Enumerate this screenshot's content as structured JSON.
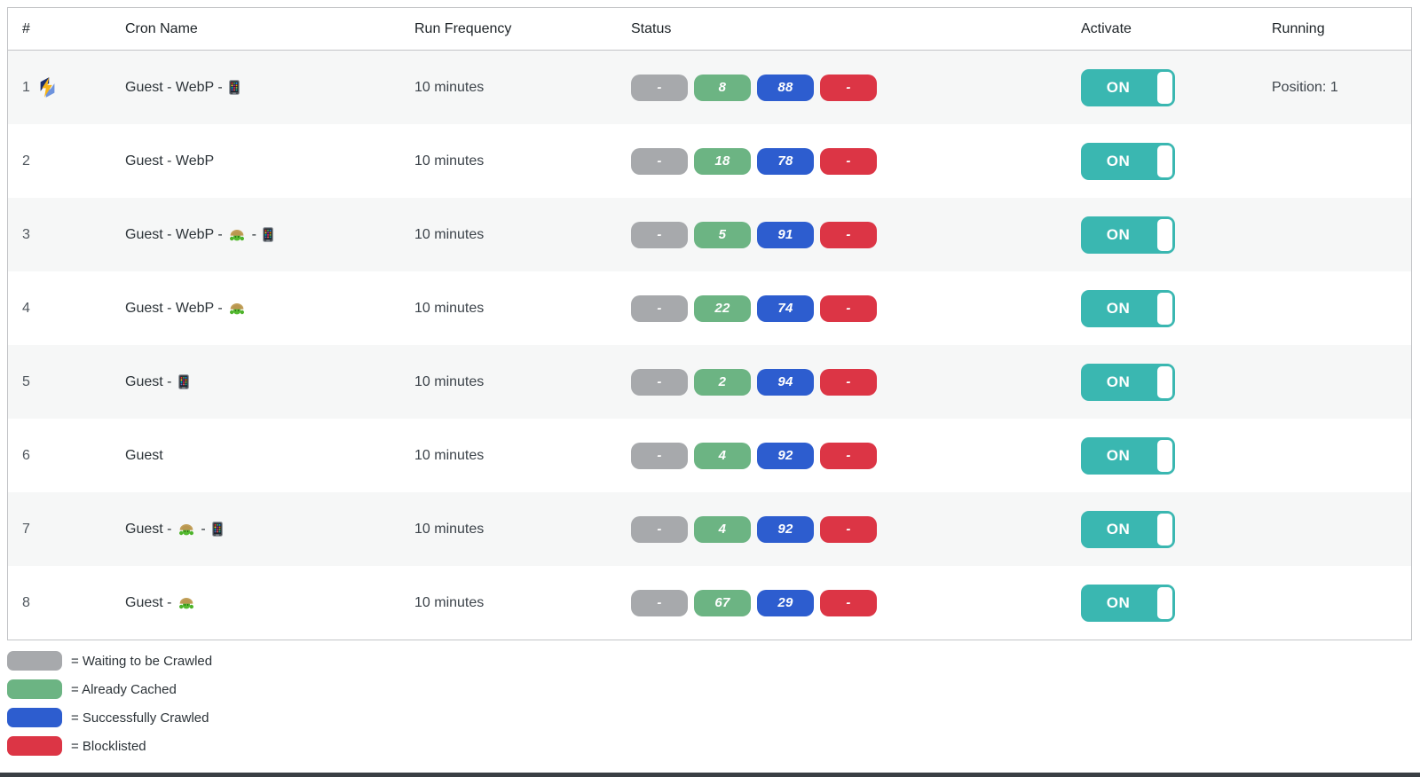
{
  "colors": {
    "waiting_gray": "#a7a9ac",
    "cached_green": "#6cb483",
    "crawled_blue": "#2d5dcf",
    "blocklisted_red": "#dc3545",
    "toggle_teal": "#3ab7b1",
    "row_stripe": "#f6f7f7",
    "table_border": "#c3c4c7"
  },
  "table": {
    "columns": [
      "#",
      "Cron Name",
      "Run Frequency",
      "Status",
      "Activate",
      "Running"
    ],
    "rows": [
      {
        "num": "1",
        "litespeed_icon": true,
        "name_parts": [
          {
            "type": "text",
            "value": "Guest - WebP - "
          },
          {
            "type": "phone-emoji",
            "value": "📱"
          }
        ],
        "frequency": "10 minutes",
        "status": {
          "waiting": "-",
          "cached": "8",
          "crawled": "88",
          "blocklisted": "-"
        },
        "activate": "ON",
        "running": "Position: 1"
      },
      {
        "num": "2",
        "litespeed_icon": false,
        "name_parts": [
          {
            "type": "text",
            "value": "Guest - WebP"
          }
        ],
        "frequency": "10 minutes",
        "status": {
          "waiting": "-",
          "cached": "18",
          "crawled": "78",
          "blocklisted": "-"
        },
        "activate": "ON",
        "running": ""
      },
      {
        "num": "3",
        "litespeed_icon": false,
        "name_parts": [
          {
            "type": "text",
            "value": "Guest - WebP - "
          },
          {
            "type": "turtle-emoji",
            "value": "🐢"
          },
          {
            "type": "text",
            "value": " - "
          },
          {
            "type": "phone-emoji",
            "value": "📱"
          }
        ],
        "frequency": "10 minutes",
        "status": {
          "waiting": "-",
          "cached": "5",
          "crawled": "91",
          "blocklisted": "-"
        },
        "activate": "ON",
        "running": ""
      },
      {
        "num": "4",
        "litespeed_icon": false,
        "name_parts": [
          {
            "type": "text",
            "value": "Guest - WebP - "
          },
          {
            "type": "turtle-emoji",
            "value": "🐢"
          }
        ],
        "frequency": "10 minutes",
        "status": {
          "waiting": "-",
          "cached": "22",
          "crawled": "74",
          "blocklisted": "-"
        },
        "activate": "ON",
        "running": ""
      },
      {
        "num": "5",
        "litespeed_icon": false,
        "name_parts": [
          {
            "type": "text",
            "value": "Guest - "
          },
          {
            "type": "phone-emoji",
            "value": "📱"
          }
        ],
        "frequency": "10 minutes",
        "status": {
          "waiting": "-",
          "cached": "2",
          "crawled": "94",
          "blocklisted": "-"
        },
        "activate": "ON",
        "running": ""
      },
      {
        "num": "6",
        "litespeed_icon": false,
        "name_parts": [
          {
            "type": "text",
            "value": "Guest"
          }
        ],
        "frequency": "10 minutes",
        "status": {
          "waiting": "-",
          "cached": "4",
          "crawled": "92",
          "blocklisted": "-"
        },
        "activate": "ON",
        "running": ""
      },
      {
        "num": "7",
        "litespeed_icon": false,
        "name_parts": [
          {
            "type": "text",
            "value": "Guest - "
          },
          {
            "type": "turtle-emoji",
            "value": "🐢"
          },
          {
            "type": "text",
            "value": " - "
          },
          {
            "type": "phone-emoji",
            "value": "📱"
          }
        ],
        "frequency": "10 minutes",
        "status": {
          "waiting": "-",
          "cached": "4",
          "crawled": "92",
          "blocklisted": "-"
        },
        "activate": "ON",
        "running": ""
      },
      {
        "num": "8",
        "litespeed_icon": false,
        "name_parts": [
          {
            "type": "text",
            "value": "Guest - "
          },
          {
            "type": "turtle-emoji",
            "value": "🐢"
          }
        ],
        "frequency": "10 minutes",
        "status": {
          "waiting": "-",
          "cached": "67",
          "crawled": "29",
          "blocklisted": "-"
        },
        "activate": "ON",
        "running": ""
      }
    ]
  },
  "legend": [
    {
      "color_key": "waiting_gray",
      "label": "= Waiting to be Crawled"
    },
    {
      "color_key": "cached_green",
      "label": "= Already Cached"
    },
    {
      "color_key": "crawled_blue",
      "label": "= Successfully Crawled"
    },
    {
      "color_key": "blocklisted_red",
      "label": "= Blocklisted"
    }
  ]
}
